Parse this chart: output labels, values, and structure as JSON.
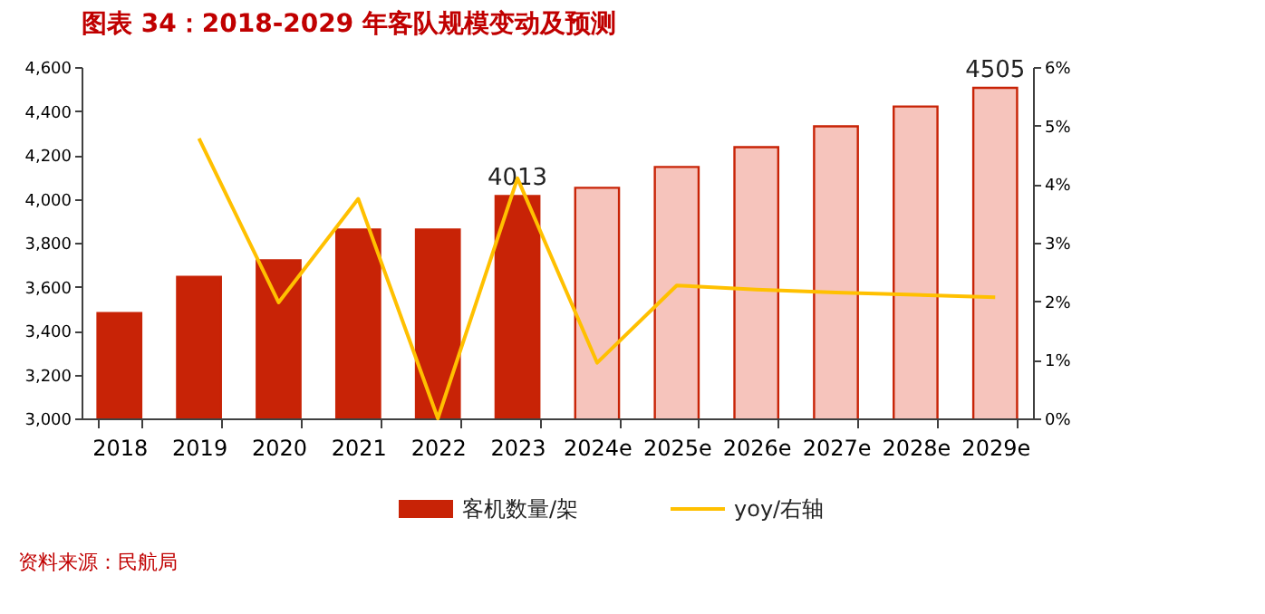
{
  "chart_data": {
    "type": "bar",
    "title": "图表 34：2018-2029 年客队规模变动及预测",
    "categories": [
      "2018",
      "2019",
      "2020",
      "2021",
      "2022",
      "2023",
      "2024e",
      "2025e",
      "2026e",
      "2027e",
      "2028e",
      "2029e"
    ],
    "series": [
      {
        "name": "客机数量/架",
        "color": "#c82306",
        "colors": [
          "#c82306",
          "#c82306",
          "#c82306",
          "#c82306",
          "#c82306",
          "#c82306",
          "#f6c4bc",
          "#f6c4bc",
          "#f6c4bc",
          "#f6c4bc",
          "#f6c4bc",
          "#f6c4bc"
        ],
        "values": [
          3480,
          3645,
          3720,
          3860,
          3860,
          4013,
          4050,
          4145,
          4235,
          4330,
          4420,
          4505
        ],
        "value_labels": [
          null,
          null,
          null,
          null,
          null,
          "4013",
          null,
          null,
          null,
          null,
          null,
          "4505"
        ]
      },
      {
        "name": "yoy/右轴",
        "type": "line",
        "axis": "y2",
        "color": "#ffc000",
        "values": [
          null,
          4.78,
          1.98,
          3.75,
          0,
          4.1,
          0.95,
          2.27,
          2.2,
          2.15,
          2.11,
          2.07
        ]
      }
    ],
    "ylim": [
      3000,
      4600
    ],
    "yticks": [
      {
        "value": 3000,
        "label": "3,000"
      },
      {
        "value": 3200,
        "label": "3,200"
      },
      {
        "value": 3400,
        "label": "3,400"
      },
      {
        "value": 3600,
        "label": "3,600"
      },
      {
        "value": 3800,
        "label": "3,800"
      },
      {
        "value": 4000,
        "label": "4,000"
      },
      {
        "value": 4200,
        "label": "4,200"
      },
      {
        "value": 4400,
        "label": "4,400"
      },
      {
        "value": 4600,
        "label": "4,600"
      }
    ],
    "y2lim": [
      0,
      6
    ],
    "y2ticks": [
      {
        "value": 0,
        "label": "0%"
      },
      {
        "value": 1,
        "label": "1%"
      },
      {
        "value": 2,
        "label": "2%"
      },
      {
        "value": 3,
        "label": "3%"
      },
      {
        "value": 4,
        "label": "4%"
      },
      {
        "value": 5,
        "label": "5%"
      },
      {
        "value": 6,
        "label": "6%"
      }
    ],
    "legend": "bottom",
    "grid": false,
    "annotations": [
      "资料来源：民航局"
    ]
  }
}
